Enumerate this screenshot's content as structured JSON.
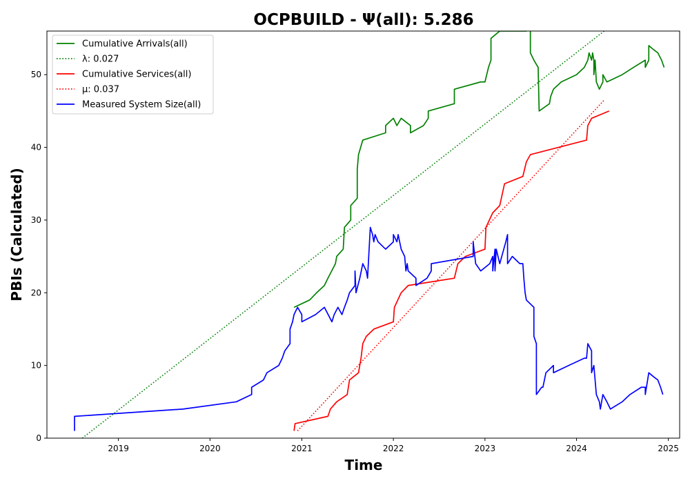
{
  "chart_data": {
    "type": "line",
    "title": "OCPBUILD -  Ψ(all): 5.286",
    "xlabel": "Time",
    "ylabel": "PBIs (Calculated)",
    "xlim": [
      "2018-03-22",
      "2025-02-15"
    ],
    "ylim": [
      0,
      56
    ],
    "x_ticks": [
      "2019",
      "2020",
      "2021",
      "2022",
      "2023",
      "2024",
      "2025"
    ],
    "y_ticks": [
      0,
      10,
      20,
      30,
      40,
      50
    ],
    "grid": false,
    "legend_position": "upper-left",
    "series": [
      {
        "name": "Cumulative Arrivals(all)",
        "style": "solid",
        "color": "#008000",
        "points": [
          [
            "2020-12-01",
            18
          ],
          [
            "2021-02-01",
            19
          ],
          [
            "2021-03-01",
            20
          ],
          [
            "2021-04-01",
            21
          ],
          [
            "2021-04-15",
            22
          ],
          [
            "2021-05-15",
            24
          ],
          [
            "2021-05-20",
            25
          ],
          [
            "2021-06-15",
            26
          ],
          [
            "2021-06-20",
            29
          ],
          [
            "2021-07-15",
            30
          ],
          [
            "2021-07-15",
            32
          ],
          [
            "2021-08-10",
            33
          ],
          [
            "2021-08-10",
            37
          ],
          [
            "2021-08-15",
            39
          ],
          [
            "2021-09-01",
            41
          ],
          [
            "2021-12-01",
            42
          ],
          [
            "2021-12-01",
            43
          ],
          [
            "2022-01-01",
            44
          ],
          [
            "2022-01-15",
            43
          ],
          [
            "2022-02-01",
            44
          ],
          [
            "2022-03-10",
            43
          ],
          [
            "2022-03-10",
            42
          ],
          [
            "2022-05-01",
            43
          ],
          [
            "2022-05-20",
            44
          ],
          [
            "2022-05-20",
            45
          ],
          [
            "2022-09-01",
            46
          ],
          [
            "2022-09-01",
            48
          ],
          [
            "2022-12-15",
            49
          ],
          [
            "2023-01-01",
            49
          ],
          [
            "2023-01-15",
            51
          ],
          [
            "2023-01-25",
            52
          ],
          [
            "2023-01-25",
            55
          ],
          [
            "2023-03-01",
            56
          ],
          [
            "2023-06-15",
            56
          ],
          [
            "2023-07-01",
            57
          ],
          [
            "2023-07-01",
            53
          ],
          [
            "2023-07-15",
            52
          ],
          [
            "2023-08-01",
            51
          ],
          [
            "2023-08-05",
            45
          ],
          [
            "2023-09-15",
            46
          ],
          [
            "2023-09-20",
            47
          ],
          [
            "2023-10-01",
            48
          ],
          [
            "2023-11-01",
            49
          ],
          [
            "2024-01-01",
            50
          ],
          [
            "2024-02-01",
            51
          ],
          [
            "2024-02-15",
            52
          ],
          [
            "2024-02-20",
            53
          ],
          [
            "2024-03-01",
            52
          ],
          [
            "2024-03-05",
            53
          ],
          [
            "2024-03-10",
            52
          ],
          [
            "2024-03-10",
            50
          ],
          [
            "2024-03-15",
            52
          ],
          [
            "2024-03-20",
            49
          ],
          [
            "2024-04-01",
            48
          ],
          [
            "2024-04-15",
            49
          ],
          [
            "2024-04-15",
            50
          ],
          [
            "2024-05-01",
            49
          ],
          [
            "2024-07-01",
            50
          ],
          [
            "2024-08-15",
            51
          ],
          [
            "2024-10-01",
            52
          ],
          [
            "2024-10-01",
            51
          ],
          [
            "2024-10-15",
            52
          ],
          [
            "2024-10-15",
            54
          ],
          [
            "2024-11-01",
            53.5
          ],
          [
            "2024-11-20",
            53
          ],
          [
            "2024-12-05",
            52
          ],
          [
            "2024-12-15",
            51
          ]
        ]
      },
      {
        "name": "λ: 0.027",
        "style": "dotted",
        "color": "#008000",
        "points": [
          [
            "2018-08-10",
            0
          ],
          [
            "2024-04-20",
            56
          ]
        ]
      },
      {
        "name": "Cumulative Services(all)",
        "style": "solid",
        "color": "#ff0000",
        "points": [
          [
            "2020-12-01",
            1
          ],
          [
            "2020-12-05",
            2
          ],
          [
            "2021-04-15",
            3
          ],
          [
            "2021-04-25",
            4
          ],
          [
            "2021-05-20",
            5
          ],
          [
            "2021-07-01",
            6
          ],
          [
            "2021-07-10",
            8
          ],
          [
            "2021-08-15",
            9
          ],
          [
            "2021-08-25",
            11
          ],
          [
            "2021-09-01",
            13
          ],
          [
            "2021-09-15",
            14
          ],
          [
            "2021-10-15",
            15
          ],
          [
            "2022-01-01",
            16
          ],
          [
            "2022-01-05",
            18
          ],
          [
            "2022-02-01",
            20
          ],
          [
            "2022-03-01",
            21
          ],
          [
            "2022-09-01",
            22
          ],
          [
            "2022-09-15",
            24
          ],
          [
            "2022-10-15",
            25
          ],
          [
            "2023-01-01",
            26
          ],
          [
            "2023-01-05",
            29
          ],
          [
            "2023-02-01",
            31
          ],
          [
            "2023-03-01",
            32
          ],
          [
            "2023-03-20",
            35
          ],
          [
            "2023-06-01",
            36
          ],
          [
            "2023-06-15",
            38
          ],
          [
            "2023-07-01",
            39
          ],
          [
            "2024-02-10",
            41
          ],
          [
            "2024-02-15",
            43
          ],
          [
            "2024-03-01",
            44
          ],
          [
            "2024-05-10",
            45
          ]
        ]
      },
      {
        "name": "μ: 0.037",
        "style": "dotted",
        "color": "#ff0000",
        "points": [
          [
            "2020-12-15",
            1
          ],
          [
            "2024-04-20",
            46.5
          ]
        ]
      },
      {
        "name": "Measured System Size(all)",
        "style": "solid",
        "color": "#0000ff",
        "points": [
          [
            "2018-07-10",
            1
          ],
          [
            "2018-07-10",
            3
          ],
          [
            "2019-09-15",
            4
          ],
          [
            "2020-04-15",
            5
          ],
          [
            "2020-06-15",
            6
          ],
          [
            "2020-06-15",
            7
          ],
          [
            "2020-08-01",
            8
          ],
          [
            "2020-08-15",
            9
          ],
          [
            "2020-10-01",
            10
          ],
          [
            "2020-10-15",
            11
          ],
          [
            "2020-10-25",
            12
          ],
          [
            "2020-11-15",
            13
          ],
          [
            "2020-11-15",
            15
          ],
          [
            "2020-11-25",
            16
          ],
          [
            "2020-12-01",
            17
          ],
          [
            "2020-12-15",
            18
          ],
          [
            "2021-01-01",
            17
          ],
          [
            "2021-01-01",
            16
          ],
          [
            "2021-02-25",
            17
          ],
          [
            "2021-04-01",
            18
          ],
          [
            "2021-05-01",
            16
          ],
          [
            "2021-05-10",
            17
          ],
          [
            "2021-05-25",
            18
          ],
          [
            "2021-06-10",
            17
          ],
          [
            "2021-06-20",
            18
          ],
          [
            "2021-07-01",
            19
          ],
          [
            "2021-07-10",
            20
          ],
          [
            "2021-08-01",
            21
          ],
          [
            "2021-08-01",
            23
          ],
          [
            "2021-08-05",
            20
          ],
          [
            "2021-08-20",
            22
          ],
          [
            "2021-09-01",
            24
          ],
          [
            "2021-09-15",
            23
          ],
          [
            "2021-09-20",
            22
          ],
          [
            "2021-10-01",
            29
          ],
          [
            "2021-10-10",
            28
          ],
          [
            "2021-10-15",
            27
          ],
          [
            "2021-10-20",
            28
          ],
          [
            "2021-11-01",
            27
          ],
          [
            "2021-12-01",
            26
          ],
          [
            "2022-01-01",
            27
          ],
          [
            "2022-01-01",
            28
          ],
          [
            "2022-01-15",
            27
          ],
          [
            "2022-01-20",
            28
          ],
          [
            "2022-02-01",
            26
          ],
          [
            "2022-02-15",
            25
          ],
          [
            "2022-02-20",
            23
          ],
          [
            "2022-02-25",
            24
          ],
          [
            "2022-03-01",
            23
          ],
          [
            "2022-04-01",
            22
          ],
          [
            "2022-04-01",
            21
          ],
          [
            "2022-05-15",
            22
          ],
          [
            "2022-06-01",
            23
          ],
          [
            "2022-06-01",
            24
          ],
          [
            "2022-11-15",
            25
          ],
          [
            "2022-11-15",
            27
          ],
          [
            "2022-11-25",
            24
          ],
          [
            "2022-12-15",
            23
          ],
          [
            "2023-01-20",
            24
          ],
          [
            "2023-02-01",
            25
          ],
          [
            "2023-02-01",
            23
          ],
          [
            "2023-02-10",
            26
          ],
          [
            "2023-02-10",
            23
          ],
          [
            "2023-02-15",
            26
          ],
          [
            "2023-03-01",
            24
          ],
          [
            "2023-03-25",
            27
          ],
          [
            "2023-04-01",
            28
          ],
          [
            "2023-04-01",
            24
          ],
          [
            "2023-04-20",
            25
          ],
          [
            "2023-05-20",
            24
          ],
          [
            "2023-06-01",
            24
          ],
          [
            "2023-06-05",
            22
          ],
          [
            "2023-06-10",
            20
          ],
          [
            "2023-06-15",
            19
          ],
          [
            "2023-07-15",
            18
          ],
          [
            "2023-07-15",
            14
          ],
          [
            "2023-07-25",
            13
          ],
          [
            "2023-07-25",
            6
          ],
          [
            "2023-08-15",
            7
          ],
          [
            "2023-08-20",
            7
          ],
          [
            "2023-09-01",
            9
          ],
          [
            "2023-10-01",
            10
          ],
          [
            "2023-10-01",
            9
          ],
          [
            "2023-12-01",
            10
          ],
          [
            "2024-02-01",
            11
          ],
          [
            "2024-02-10",
            11
          ],
          [
            "2024-02-15",
            13
          ],
          [
            "2024-03-01",
            12
          ],
          [
            "2024-03-01",
            9
          ],
          [
            "2024-03-10",
            10
          ],
          [
            "2024-03-20",
            6
          ],
          [
            "2024-04-01",
            5
          ],
          [
            "2024-04-05",
            4
          ],
          [
            "2024-04-15",
            6
          ],
          [
            "2024-05-01",
            5
          ],
          [
            "2024-05-15",
            4
          ],
          [
            "2024-07-01",
            5
          ],
          [
            "2024-08-01",
            6
          ],
          [
            "2024-09-15",
            7
          ],
          [
            "2024-10-01",
            7
          ],
          [
            "2024-10-01",
            6
          ],
          [
            "2024-10-15",
            9
          ],
          [
            "2024-11-01",
            8.5
          ],
          [
            "2024-11-20",
            8
          ],
          [
            "2024-12-01",
            7
          ],
          [
            "2024-12-10",
            6
          ]
        ]
      }
    ]
  }
}
